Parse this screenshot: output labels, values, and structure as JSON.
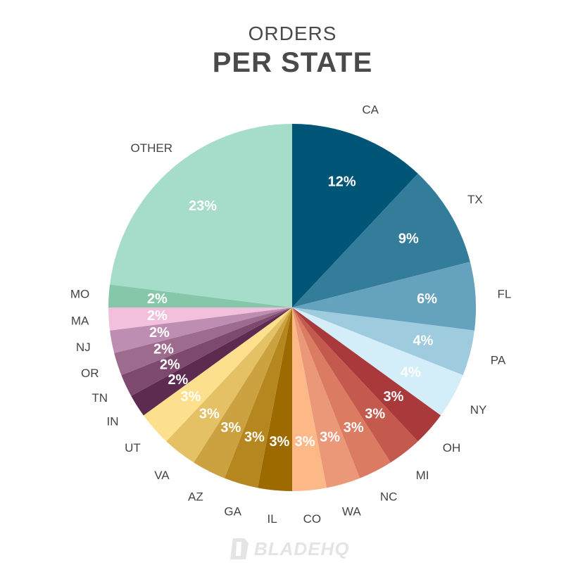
{
  "header": {
    "title_top": "ORDERS",
    "title_main": "PER STATE"
  },
  "logo": {
    "text": "BLADEHQ"
  },
  "chart_data": {
    "type": "pie",
    "title": "ORDERS PER STATE",
    "start": "top, clockwise",
    "slices": [
      {
        "label": "CA",
        "value": 12,
        "display": "12%",
        "color": "#015576"
      },
      {
        "label": "TX",
        "value": 9,
        "display": "9%",
        "color": "#347d9a"
      },
      {
        "label": "FL",
        "value": 6,
        "display": "6%",
        "color": "#64a2bd"
      },
      {
        "label": "PA",
        "value": 4,
        "display": "4%",
        "color": "#9fcbde"
      },
      {
        "label": "NY",
        "value": 4,
        "display": "4%",
        "color": "#d3eef9"
      },
      {
        "label": "OH",
        "value": 3,
        "display": "3%",
        "color": "#a9393b"
      },
      {
        "label": "MI",
        "value": 3,
        "display": "3%",
        "color": "#c45a4d"
      },
      {
        "label": "NC",
        "value": 3,
        "display": "3%",
        "color": "#db7b62"
      },
      {
        "label": "WA",
        "value": 3,
        "display": "3%",
        "color": "#ea9878"
      },
      {
        "label": "CO",
        "value": 3,
        "display": "3%",
        "color": "#fdb888"
      },
      {
        "label": "IL",
        "value": 3,
        "display": "3%",
        "color": "#9d6a00"
      },
      {
        "label": "GA",
        "value": 3,
        "display": "3%",
        "color": "#b6861f"
      },
      {
        "label": "AZ",
        "value": 3,
        "display": "3%",
        "color": "#cca240"
      },
      {
        "label": "VA",
        "value": 3,
        "display": "3%",
        "color": "#e5c165"
      },
      {
        "label": "UT",
        "value": 3,
        "display": "3%",
        "color": "#fde08d"
      },
      {
        "label": "IN",
        "value": 2,
        "display": "2%",
        "color": "#5c2b4f"
      },
      {
        "label": "TN",
        "value": 2,
        "display": "2%",
        "color": "#7d4a6d"
      },
      {
        "label": "OR",
        "value": 2,
        "display": "2%",
        "color": "#9c6b8e"
      },
      {
        "label": "NJ",
        "value": 2,
        "display": "2%",
        "color": "#bd8eb1"
      },
      {
        "label": "MA",
        "value": 2,
        "display": "2%",
        "color": "#f2c0dc"
      },
      {
        "label": "MO",
        "value": 2,
        "display": "2%",
        "color": "#86c7a9"
      },
      {
        "label": "OTHER",
        "value": 23,
        "display": "23%",
        "color": "#a6dcca"
      }
    ]
  }
}
